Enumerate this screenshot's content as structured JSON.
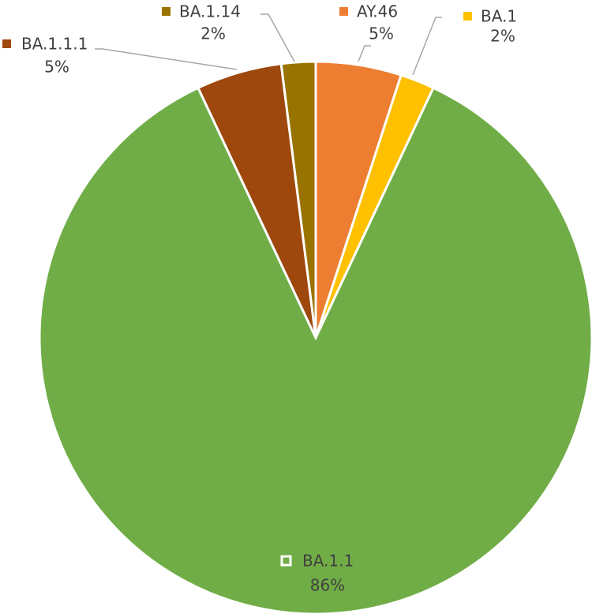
{
  "chart_data": {
    "type": "pie",
    "categories": [
      "AY.46",
      "BA.1",
      "BA.1.1",
      "BA.1.1.1",
      "BA.1.14"
    ],
    "values": [
      5,
      2,
      86,
      5,
      2
    ],
    "value_labels": [
      "5%",
      "2%",
      "86%",
      "5%",
      "2%"
    ],
    "colors": [
      "#ed7d31",
      "#ffc000",
      "#70ad47",
      "#9e480e",
      "#997300"
    ]
  }
}
